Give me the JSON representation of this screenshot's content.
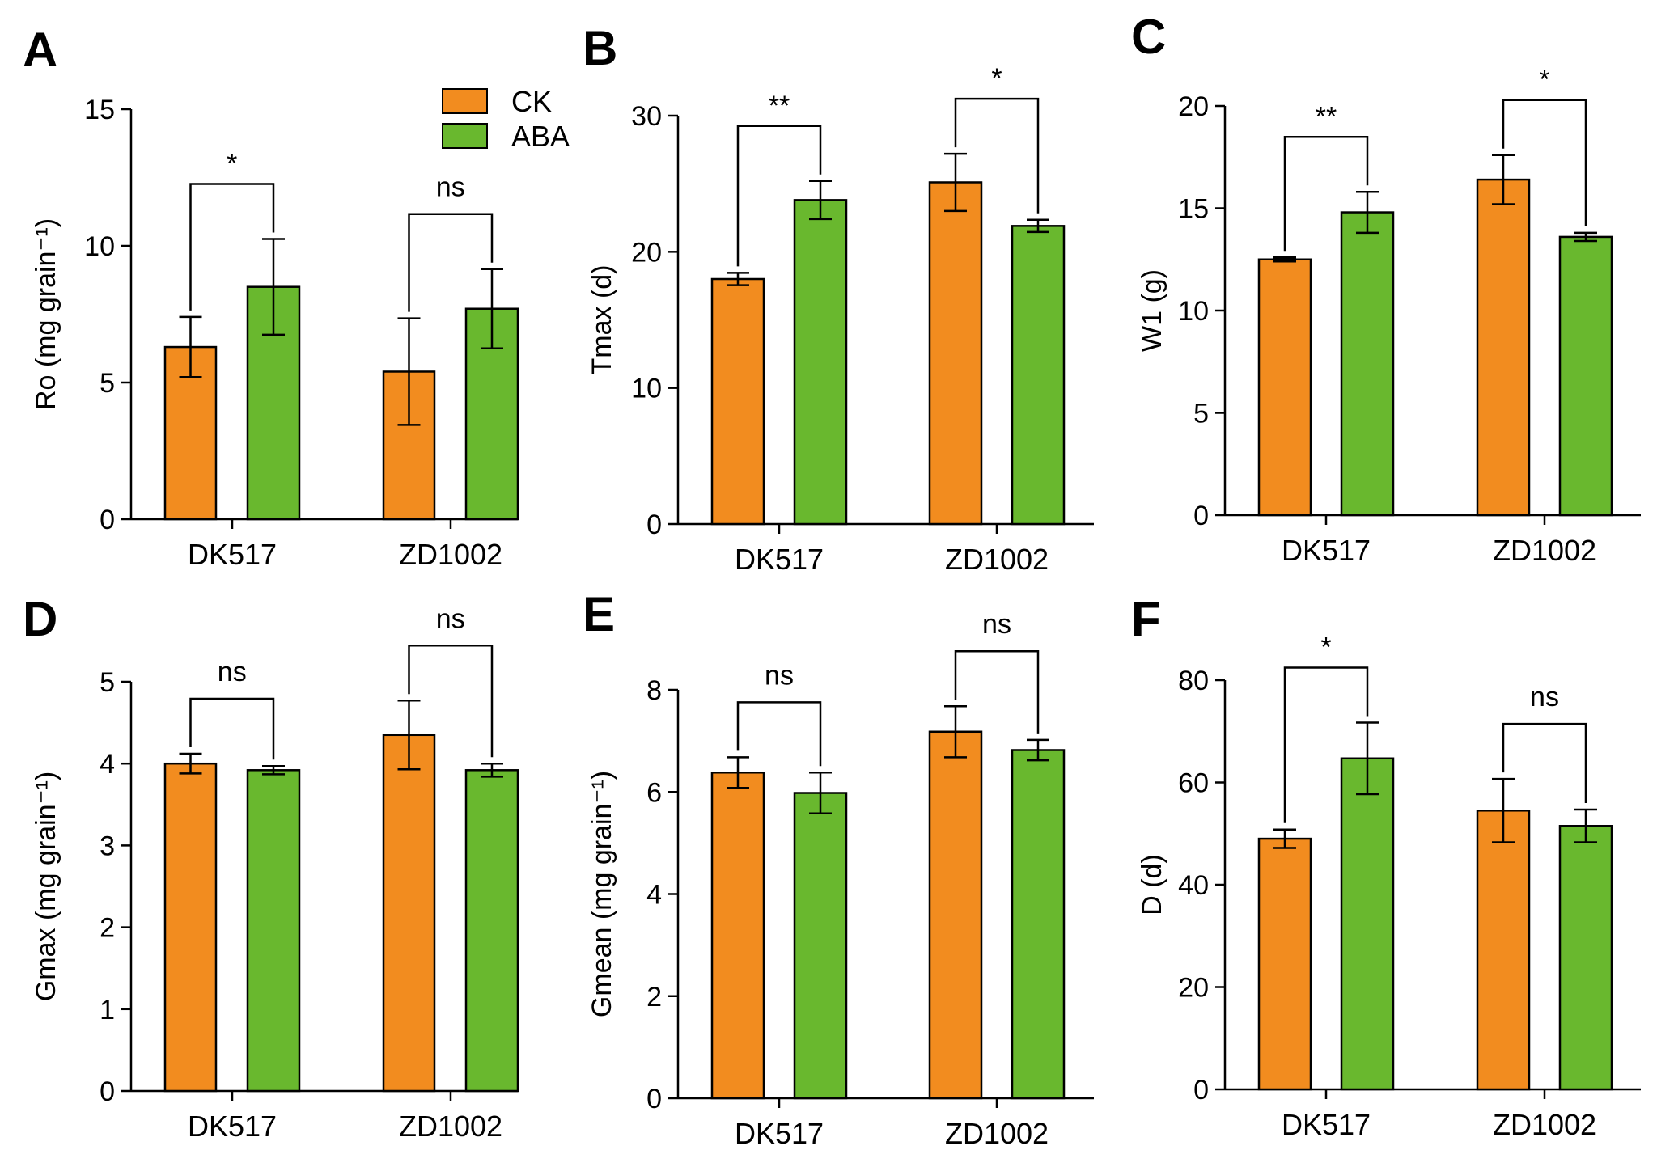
{
  "legend": {
    "items": [
      {
        "label": "CK",
        "color": "#f28c1f"
      },
      {
        "label": "ABA",
        "color": "#69b82e"
      }
    ]
  },
  "chart_data": [
    {
      "panel": "A",
      "type": "bar",
      "ylabel": "Ro (mg grain⁻¹)",
      "ylim": [
        0,
        15
      ],
      "yticks": [
        0,
        5,
        10,
        15
      ],
      "categories": [
        "DK517",
        "ZD1002"
      ],
      "series": [
        {
          "name": "CK",
          "color": "#f28c1f",
          "values": [
            6.3,
            5.4
          ],
          "errors": [
            1.1,
            1.95
          ]
        },
        {
          "name": "ABA",
          "color": "#69b82e",
          "values": [
            8.5,
            7.7
          ],
          "errors": [
            1.75,
            1.45
          ]
        }
      ],
      "significance": [
        "*",
        "ns"
      ]
    },
    {
      "panel": "B",
      "type": "bar",
      "ylabel": "Tmax (d)",
      "ylim": [
        0,
        30
      ],
      "yticks": [
        0,
        10,
        20,
        30
      ],
      "categories": [
        "DK517",
        "ZD1002"
      ],
      "series": [
        {
          "name": "CK",
          "color": "#f28c1f",
          "values": [
            18.0,
            25.1
          ],
          "errors": [
            0.45,
            2.1
          ]
        },
        {
          "name": "ABA",
          "color": "#69b82e",
          "values": [
            23.8,
            21.9
          ],
          "errors": [
            1.4,
            0.45
          ]
        }
      ],
      "significance": [
        "**",
        "*"
      ]
    },
    {
      "panel": "C",
      "type": "bar",
      "ylabel": "W1 (g)",
      "ylim": [
        0,
        20
      ],
      "yticks": [
        0,
        5,
        10,
        15,
        20
      ],
      "categories": [
        "DK517",
        "ZD1002"
      ],
      "series": [
        {
          "name": "CK",
          "color": "#f28c1f",
          "values": [
            12.5,
            16.4
          ],
          "errors": [
            0.1,
            1.2
          ]
        },
        {
          "name": "ABA",
          "color": "#69b82e",
          "values": [
            14.8,
            13.6
          ],
          "errors": [
            1.0,
            0.2
          ]
        }
      ],
      "significance": [
        "**",
        "*"
      ]
    },
    {
      "panel": "D",
      "type": "bar",
      "ylabel": "Gmax (mg grain⁻¹)",
      "ylim": [
        0,
        5
      ],
      "yticks": [
        0,
        1,
        2,
        3,
        4,
        5
      ],
      "categories": [
        "DK517",
        "ZD1002"
      ],
      "series": [
        {
          "name": "CK",
          "color": "#f28c1f",
          "values": [
            4.0,
            4.35
          ],
          "errors": [
            0.12,
            0.42
          ]
        },
        {
          "name": "ABA",
          "color": "#69b82e",
          "values": [
            3.92,
            3.92
          ],
          "errors": [
            0.05,
            0.08
          ]
        }
      ],
      "significance": [
        "ns",
        "ns"
      ]
    },
    {
      "panel": "E",
      "type": "bar",
      "ylabel": "Gmean (mg grain⁻¹)",
      "ylim": [
        0,
        8
      ],
      "yticks": [
        0,
        2,
        4,
        6,
        8
      ],
      "categories": [
        "DK517",
        "ZD1002"
      ],
      "series": [
        {
          "name": "CK",
          "color": "#f28c1f",
          "values": [
            6.38,
            7.18
          ],
          "errors": [
            0.3,
            0.5
          ]
        },
        {
          "name": "ABA",
          "color": "#69b82e",
          "values": [
            5.98,
            6.82
          ],
          "errors": [
            0.4,
            0.2
          ]
        }
      ],
      "significance": [
        "ns",
        "ns"
      ]
    },
    {
      "panel": "F",
      "type": "bar",
      "ylabel": "D (d)",
      "ylim": [
        0,
        80
      ],
      "yticks": [
        0,
        20,
        40,
        60,
        80
      ],
      "categories": [
        "DK517",
        "ZD1002"
      ],
      "series": [
        {
          "name": "CK",
          "color": "#f28c1f",
          "values": [
            49.0,
            54.5
          ],
          "errors": [
            1.8,
            6.2
          ]
        },
        {
          "name": "ABA",
          "color": "#69b82e",
          "values": [
            64.7,
            51.5
          ],
          "errors": [
            7.0,
            3.2
          ]
        }
      ],
      "significance": [
        "*",
        "ns"
      ]
    }
  ]
}
